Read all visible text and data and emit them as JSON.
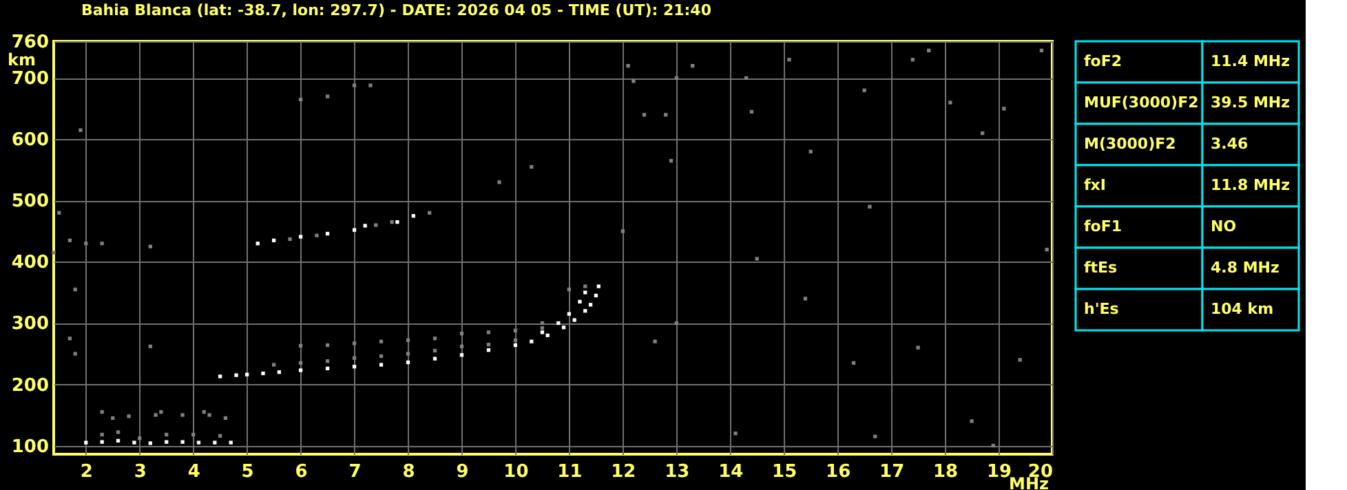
{
  "chart_data": [
    {
      "type": "scatter",
      "title": "Bahia Blanca (lat: -38.7, lon: 297.7) - DATE: 2026 04 05 - TIME (UT): 21:40",
      "xlabel": "MHz",
      "ylabel": "km",
      "xlim": [
        1.4,
        20
      ],
      "ylim": [
        86,
        760
      ],
      "xticks": [
        2,
        3,
        4,
        5,
        6,
        7,
        8,
        9,
        10,
        11,
        12,
        13,
        14,
        15,
        16,
        17,
        18,
        19,
        20
      ],
      "yticks": [
        100,
        200,
        300,
        400,
        500,
        600,
        700,
        760
      ],
      "grid": true,
      "marker": "square",
      "series": [
        {
          "color": "#808080",
          "x": [
            1.4,
            1.5,
            1.7,
            1.8,
            1.9,
            2.0,
            2.3,
            3.2,
            3.2,
            1.7,
            1.8,
            6.0,
            6.5,
            7.0,
            7.3,
            9.7,
            10.3,
            12.1,
            12.2,
            12.4,
            12.8,
            12.9,
            13.0,
            13.3,
            14.3,
            14.4,
            15.1,
            15.5,
            16.5,
            16.6,
            17.4,
            17.7,
            18.1,
            18.7,
            19.1,
            19.8,
            19.9,
            12.0,
            14.5,
            15.4,
            16.3,
            17.5,
            18.5,
            19.4,
            13.0,
            12.6,
            14.1,
            16.7,
            18.9
          ],
          "values": [
            415,
            480,
            435,
            355,
            615,
            430,
            430,
            425,
            262,
            275,
            250,
            665,
            670,
            688,
            688,
            530,
            555,
            720,
            695,
            640,
            640,
            565,
            700,
            720,
            700,
            645,
            730,
            580,
            680,
            490,
            730,
            745,
            660,
            610,
            650,
            745,
            420,
            450,
            405,
            340,
            235,
            260,
            140,
            240,
            300,
            270,
            120,
            115,
            100
          ]
        },
        {
          "color": "#808080",
          "x": [
            2.3,
            2.6,
            3.0,
            3.5,
            4.0,
            4.5,
            2.5,
            2.8,
            3.3,
            3.8,
            4.3,
            4.6,
            2.3,
            3.4,
            4.2,
            5.5,
            6.0,
            6.5,
            7.0,
            7.5,
            8.0,
            8.5,
            9.0,
            9.5,
            10.0,
            10.5,
            6.0,
            6.5,
            7.0,
            7.5,
            8.0,
            8.5,
            9.0,
            9.5,
            10.0,
            10.5,
            11.0,
            11.3,
            5.8,
            6.3,
            7.4,
            7.7,
            8.4
          ],
          "values": [
            118,
            122,
            112,
            118,
            118,
            116,
            145,
            148,
            150,
            150,
            150,
            145,
            155,
            155,
            155,
            232,
            235,
            238,
            243,
            246,
            250,
            255,
            262,
            265,
            272,
            292,
            263,
            264,
            267,
            270,
            272,
            275,
            283,
            285,
            288,
            300,
            355,
            360,
            437,
            443,
            460,
            465,
            480
          ]
        },
        {
          "color": "#ffffff",
          "x": [
            2.0,
            2.3,
            2.6,
            2.9,
            3.2,
            3.5,
            3.8,
            4.1,
            4.4,
            4.7,
            4.5,
            4.8,
            5.0,
            5.3,
            5.6,
            6.0,
            6.5,
            7.0,
            7.5,
            8.0,
            8.5,
            9.0,
            9.5,
            10.0,
            10.3,
            10.6,
            10.9,
            11.1,
            11.3,
            11.4,
            11.5,
            11.55,
            10.5,
            10.8,
            11.0,
            11.2,
            11.3,
            5.2,
            5.5,
            6.0,
            6.5,
            7.0,
            7.2,
            7.8,
            8.1
          ],
          "values": [
            105,
            106,
            108,
            105,
            104,
            106,
            106,
            105,
            105,
            105,
            213,
            215,
            216,
            218,
            220,
            223,
            226,
            229,
            232,
            236,
            242,
            248,
            256,
            264,
            270,
            280,
            293,
            305,
            320,
            330,
            345,
            360,
            285,
            300,
            315,
            335,
            350,
            430,
            435,
            441,
            446,
            452,
            459,
            465,
            475
          ]
        }
      ]
    },
    {
      "type": "other",
      "annotations": [
        "foF2",
        "11.4 MHz",
        "MUF(3000)F2",
        "39.5 MHz",
        "M(3000)F2",
        "3.46",
        "fxI",
        "11.8 MHz",
        "foF1",
        "NO",
        "ftEs",
        "4.8 MHz",
        "h'Es",
        "104 km"
      ]
    }
  ]
}
